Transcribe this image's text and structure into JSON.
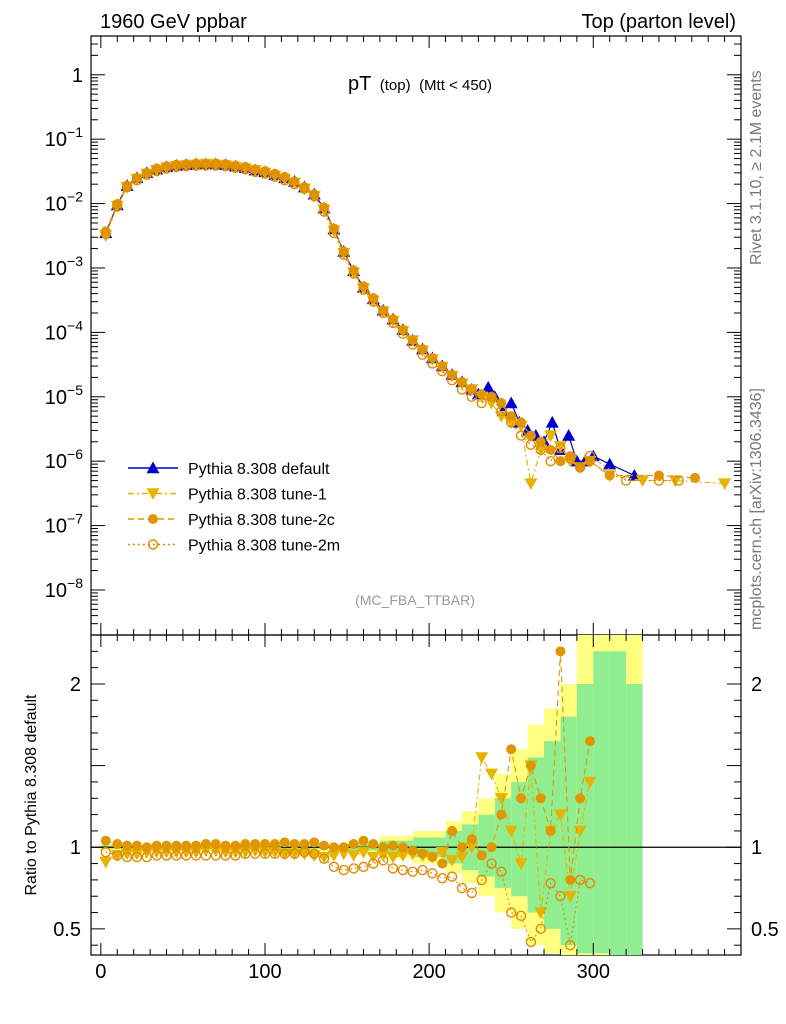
{
  "header": {
    "left": "1960 GeV ppbar",
    "right": "Top (parton level)"
  },
  "side_text": {
    "rivet": "Rivet 3.1.10, ≥ 2.1M events",
    "mcplots": "mcplots.cern.ch [arXiv:1306.3436]"
  },
  "chart_data": [
    {
      "type": "line",
      "title_main": "pT",
      "title_sub": "(top)",
      "title_cut": "(Mtt < 450)",
      "analysis_tag": "(MC_FBA_TTBAR)",
      "x_scale": "linear",
      "y_scale": "log",
      "xlim": [
        -6,
        390
      ],
      "ylim": [
        2e-09,
        4
      ],
      "y_ticks": [
        {
          "value": 1,
          "label": "1"
        },
        {
          "value": 0.1,
          "label": "10",
          "exp": "−1"
        },
        {
          "value": 0.01,
          "label": "10",
          "exp": "−2"
        },
        {
          "value": 0.001,
          "label": "10",
          "exp": "−3"
        },
        {
          "value": 0.0001,
          "label": "10",
          "exp": "−4"
        },
        {
          "value": 1e-05,
          "label": "10",
          "exp": "−5"
        },
        {
          "value": 1e-06,
          "label": "10",
          "exp": "−6"
        },
        {
          "value": 1e-07,
          "label": "10",
          "exp": "−7"
        },
        {
          "value": 1e-08,
          "label": "10",
          "exp": "−8"
        }
      ],
      "legend": [
        {
          "name": "Pythia 8.308 default",
          "color": "#0000cc",
          "marker": "triangle-up",
          "line": "solid"
        },
        {
          "name": "Pythia 8.308 tune-1",
          "color": "#e6b400",
          "marker": "triangle-down",
          "line": "dashdot"
        },
        {
          "name": "Pythia 8.308 tune-2c",
          "color": "#e09600",
          "marker": "circle",
          "line": "dashed"
        },
        {
          "name": "Pythia 8.308 tune-2m",
          "color": "#e08a00",
          "marker": "open-circle",
          "line": "dotted"
        }
      ],
      "series": [
        {
          "name": "Pythia 8.308 default",
          "x": [
            3,
            10,
            16,
            22,
            28,
            34,
            40,
            46,
            52,
            58,
            64,
            70,
            76,
            82,
            88,
            94,
            100,
            106,
            112,
            118,
            124,
            130,
            136,
            142,
            148,
            154,
            160,
            166,
            172,
            178,
            184,
            190,
            196,
            202,
            208,
            214,
            220,
            226,
            230,
            236,
            240,
            245,
            250,
            255,
            260,
            265,
            270,
            275,
            280,
            285,
            290,
            295,
            300,
            310,
            325
          ],
          "y": [
            0.0035,
            0.0095,
            0.019,
            0.025,
            0.03,
            0.034,
            0.037,
            0.039,
            0.04,
            0.041,
            0.041,
            0.041,
            0.04,
            0.038,
            0.036,
            0.033,
            0.031,
            0.028,
            0.025,
            0.022,
            0.018,
            0.014,
            0.0085,
            0.004,
            0.0018,
            0.0009,
            0.0005,
            0.00033,
            0.00022,
            0.00016,
            0.00011,
            7.5e-05,
            5.5e-05,
            4e-05,
            3e-05,
            2.2e-05,
            1.7e-05,
            1.3e-05,
            1.1e-05,
            1.4e-05,
            1e-05,
            6e-06,
            8e-06,
            4e-06,
            3e-06,
            2.5e-06,
            2e-06,
            4e-06,
            1.5e-06,
            2.5e-06,
            1e-06,
            1e-06,
            1.2e-06,
            9e-07,
            6e-07
          ]
        },
        {
          "name": "Pythia 8.308 tune-1",
          "x": [
            3,
            10,
            16,
            22,
            28,
            34,
            40,
            46,
            52,
            58,
            64,
            70,
            76,
            82,
            88,
            94,
            100,
            106,
            112,
            118,
            124,
            130,
            136,
            142,
            148,
            154,
            160,
            166,
            172,
            178,
            184,
            190,
            196,
            202,
            208,
            214,
            220,
            226,
            232,
            238,
            244,
            250,
            256,
            262,
            268,
            274,
            280,
            286,
            292,
            298,
            310,
            330,
            350,
            380
          ],
          "y": [
            0.0032,
            0.0092,
            0.018,
            0.024,
            0.029,
            0.033,
            0.036,
            0.038,
            0.039,
            0.04,
            0.041,
            0.04,
            0.039,
            0.037,
            0.035,
            0.033,
            0.03,
            0.027,
            0.024,
            0.021,
            0.017,
            0.013,
            0.008,
            0.0038,
            0.0017,
            0.00085,
            0.00048,
            0.00031,
            0.00021,
            0.00015,
            0.000105,
            7.5e-05,
            5.2e-05,
            3.8e-05,
            2.9e-05,
            2.1e-05,
            1.6e-05,
            1.3e-05,
            1e-05,
            8e-06,
            5e-06,
            4e-06,
            3.5e-06,
            4.5e-07,
            1.5e-06,
            2.5e-06,
            1.7e-06,
            1e-06,
            8e-07,
            1e-06,
            6e-07,
            5e-07,
            5e-07,
            4.5e-07
          ]
        },
        {
          "name": "Pythia 8.308 tune-2c",
          "x": [
            3,
            10,
            16,
            22,
            28,
            34,
            40,
            46,
            52,
            58,
            64,
            70,
            76,
            82,
            88,
            94,
            100,
            106,
            112,
            118,
            124,
            130,
            136,
            142,
            148,
            154,
            160,
            166,
            172,
            178,
            184,
            190,
            196,
            202,
            208,
            214,
            220,
            226,
            232,
            238,
            244,
            250,
            256,
            262,
            268,
            274,
            280,
            286,
            292,
            298,
            310,
            340,
            362
          ],
          "y": [
            0.0037,
            0.0098,
            0.019,
            0.025,
            0.03,
            0.035,
            0.038,
            0.04,
            0.041,
            0.042,
            0.042,
            0.042,
            0.041,
            0.039,
            0.037,
            0.034,
            0.032,
            0.029,
            0.026,
            0.022,
            0.018,
            0.014,
            0.0087,
            0.0041,
            0.0018,
            0.00092,
            0.00052,
            0.00034,
            0.00022,
            0.00016,
            0.00011,
            7.6e-05,
            5.5e-05,
            4e-05,
            3e-05,
            2.2e-05,
            1.7e-05,
            1.3e-05,
            1.1e-05,
            1e-05,
            8e-06,
            5e-06,
            4e-06,
            2.5e-06,
            2e-06,
            1.5e-06,
            1e-06,
            1.2e-06,
            8e-07,
            1e-06,
            6e-07,
            6e-07,
            5.5e-07
          ]
        },
        {
          "name": "Pythia 8.308 tune-2m",
          "x": [
            3,
            10,
            16,
            22,
            28,
            34,
            40,
            46,
            52,
            58,
            64,
            70,
            76,
            82,
            88,
            94,
            100,
            106,
            112,
            118,
            124,
            130,
            136,
            142,
            148,
            154,
            160,
            166,
            172,
            178,
            184,
            190,
            196,
            202,
            208,
            214,
            220,
            226,
            232,
            238,
            244,
            250,
            256,
            262,
            268,
            274,
            280,
            286,
            292,
            298,
            320,
            340,
            352
          ],
          "y": [
            0.0034,
            0.009,
            0.018,
            0.023,
            0.028,
            0.032,
            0.035,
            0.037,
            0.038,
            0.039,
            0.039,
            0.039,
            0.038,
            0.036,
            0.034,
            0.031,
            0.029,
            0.026,
            0.023,
            0.02,
            0.017,
            0.013,
            0.0075,
            0.0035,
            0.0016,
            0.00082,
            0.00046,
            0.0003,
            0.0002,
            0.00014,
            9.5e-05,
            6.5e-05,
            4.5e-05,
            3.3e-05,
            2.5e-05,
            1.8e-05,
            1.3e-05,
            1e-05,
            8e-06,
            1e-05,
            6e-06,
            4e-06,
            2.5e-06,
            1.8e-06,
            1.5e-06,
            1e-06,
            1.6e-06,
            1.1e-06,
            8e-07,
            1.2e-06,
            5e-07,
            5e-07,
            5e-07
          ]
        }
      ]
    },
    {
      "type": "line",
      "ylabel": "Ratio to Pythia 8.308 default",
      "x_scale": "linear",
      "xlim": [
        -6,
        390
      ],
      "ylim": [
        0.34,
        2.3
      ],
      "x_ticks": [
        0,
        100,
        200,
        300
      ],
      "y_ticks": [
        {
          "value": 0.5,
          "label": "0.5"
        },
        {
          "value": 1,
          "label": "1"
        },
        {
          "value": 2,
          "label": "2"
        }
      ],
      "reference_line": 1,
      "band_colors": {
        "stat": "#90ee90",
        "total": "#ffff80"
      },
      "band": {
        "x": [
          0,
          150,
          170,
          190,
          210,
          220,
          230,
          240,
          250,
          260,
          270,
          280,
          290,
          300,
          310,
          320,
          330
        ],
        "inner_lo": [
          0.99,
          0.98,
          0.96,
          0.94,
          0.9,
          0.86,
          0.82,
          0.75,
          0.7,
          0.6,
          0.5,
          0.4,
          0.35,
          0.35,
          0.34,
          0.34,
          0.34
        ],
        "inner_hi": [
          1.01,
          1.02,
          1.04,
          1.06,
          1.1,
          1.14,
          1.2,
          1.3,
          1.4,
          1.55,
          1.65,
          1.8,
          2.0,
          2.2,
          2.2,
          2.0,
          2.0
        ],
        "outer_lo": [
          0.98,
          0.97,
          0.93,
          0.9,
          0.84,
          0.78,
          0.7,
          0.6,
          0.5,
          0.4,
          0.35,
          0.34,
          0.34,
          0.34,
          0.34,
          0.34,
          0.34
        ],
        "outer_hi": [
          1.02,
          1.03,
          1.07,
          1.1,
          1.16,
          1.22,
          1.3,
          1.45,
          1.6,
          1.75,
          1.85,
          2.0,
          2.3,
          2.3,
          2.3,
          2.3,
          2.3
        ]
      },
      "series": [
        {
          "name": "Pythia 8.308 tune-1",
          "x": [
            3,
            10,
            16,
            22,
            28,
            34,
            40,
            46,
            52,
            58,
            64,
            70,
            76,
            82,
            88,
            94,
            100,
            106,
            112,
            118,
            124,
            130,
            136,
            142,
            148,
            154,
            160,
            166,
            172,
            178,
            184,
            190,
            196,
            202,
            208,
            214,
            220,
            226,
            232,
            238,
            244,
            250,
            256,
            262,
            268,
            274,
            280,
            286,
            292,
            298
          ],
          "y": [
            0.91,
            0.95,
            0.96,
            0.96,
            0.97,
            0.97,
            0.97,
            0.97,
            0.97,
            0.97,
            0.98,
            0.98,
            0.97,
            0.97,
            0.97,
            0.98,
            0.97,
            0.97,
            0.96,
            0.96,
            0.96,
            0.95,
            0.94,
            0.95,
            0.96,
            0.95,
            0.97,
            0.94,
            0.95,
            0.94,
            0.95,
            0.96,
            0.95,
            0.94,
            0.97,
            0.92,
            0.94,
            1.0,
            1.55,
            1.45,
            1.3,
            1.1,
            0.9,
            1.5,
            0.6,
            1.1,
            1.2,
            0.7,
            1.1,
            1.4
          ]
        },
        {
          "name": "Pythia 8.308 tune-2c",
          "x": [
            3,
            10,
            16,
            22,
            28,
            34,
            40,
            46,
            52,
            58,
            64,
            70,
            76,
            82,
            88,
            94,
            100,
            106,
            112,
            118,
            124,
            130,
            136,
            142,
            148,
            154,
            160,
            166,
            172,
            178,
            184,
            190,
            196,
            202,
            208,
            214,
            220,
            226,
            232,
            238,
            244,
            250,
            256,
            262,
            268,
            274,
            280,
            286,
            292,
            298
          ],
          "y": [
            1.04,
            1.02,
            1.01,
            1.01,
            1.0,
            1.01,
            1.01,
            1.01,
            1.01,
            1.01,
            1.02,
            1.02,
            1.01,
            1.01,
            1.02,
            1.02,
            1.02,
            1.02,
            1.03,
            1.02,
            1.02,
            1.03,
            1.01,
            1.0,
            1.0,
            1.02,
            1.04,
            1.02,
            1.0,
            1.01,
            1.0,
            0.98,
            0.96,
            0.94,
            0.9,
            1.1,
            1.0,
            1.05,
            0.95,
            1.0,
            1.2,
            1.6,
            1.3,
            1.5,
            1.3,
            1.1,
            2.2,
            0.8,
            1.3,
            1.65
          ]
        },
        {
          "name": "Pythia 8.308 tune-2m",
          "x": [
            3,
            10,
            16,
            22,
            28,
            34,
            40,
            46,
            52,
            58,
            64,
            70,
            76,
            82,
            88,
            94,
            100,
            106,
            112,
            118,
            124,
            130,
            136,
            142,
            148,
            154,
            160,
            166,
            172,
            178,
            184,
            190,
            196,
            202,
            208,
            214,
            220,
            226,
            232,
            238,
            244,
            250,
            256,
            262,
            268,
            274,
            280,
            286,
            292,
            298
          ],
          "y": [
            0.97,
            0.95,
            0.94,
            0.94,
            0.94,
            0.95,
            0.95,
            0.95,
            0.95,
            0.95,
            0.95,
            0.95,
            0.95,
            0.95,
            0.96,
            0.96,
            0.96,
            0.96,
            0.96,
            0.96,
            0.97,
            0.96,
            0.93,
            0.88,
            0.86,
            0.87,
            0.88,
            0.9,
            0.92,
            0.87,
            0.86,
            0.85,
            0.86,
            0.84,
            0.81,
            0.82,
            0.75,
            0.72,
            0.8,
            0.9,
            0.85,
            0.6,
            0.58,
            0.42,
            0.5,
            0.78,
            0.7,
            0.4,
            0.8,
            0.78
          ]
        }
      ]
    }
  ]
}
